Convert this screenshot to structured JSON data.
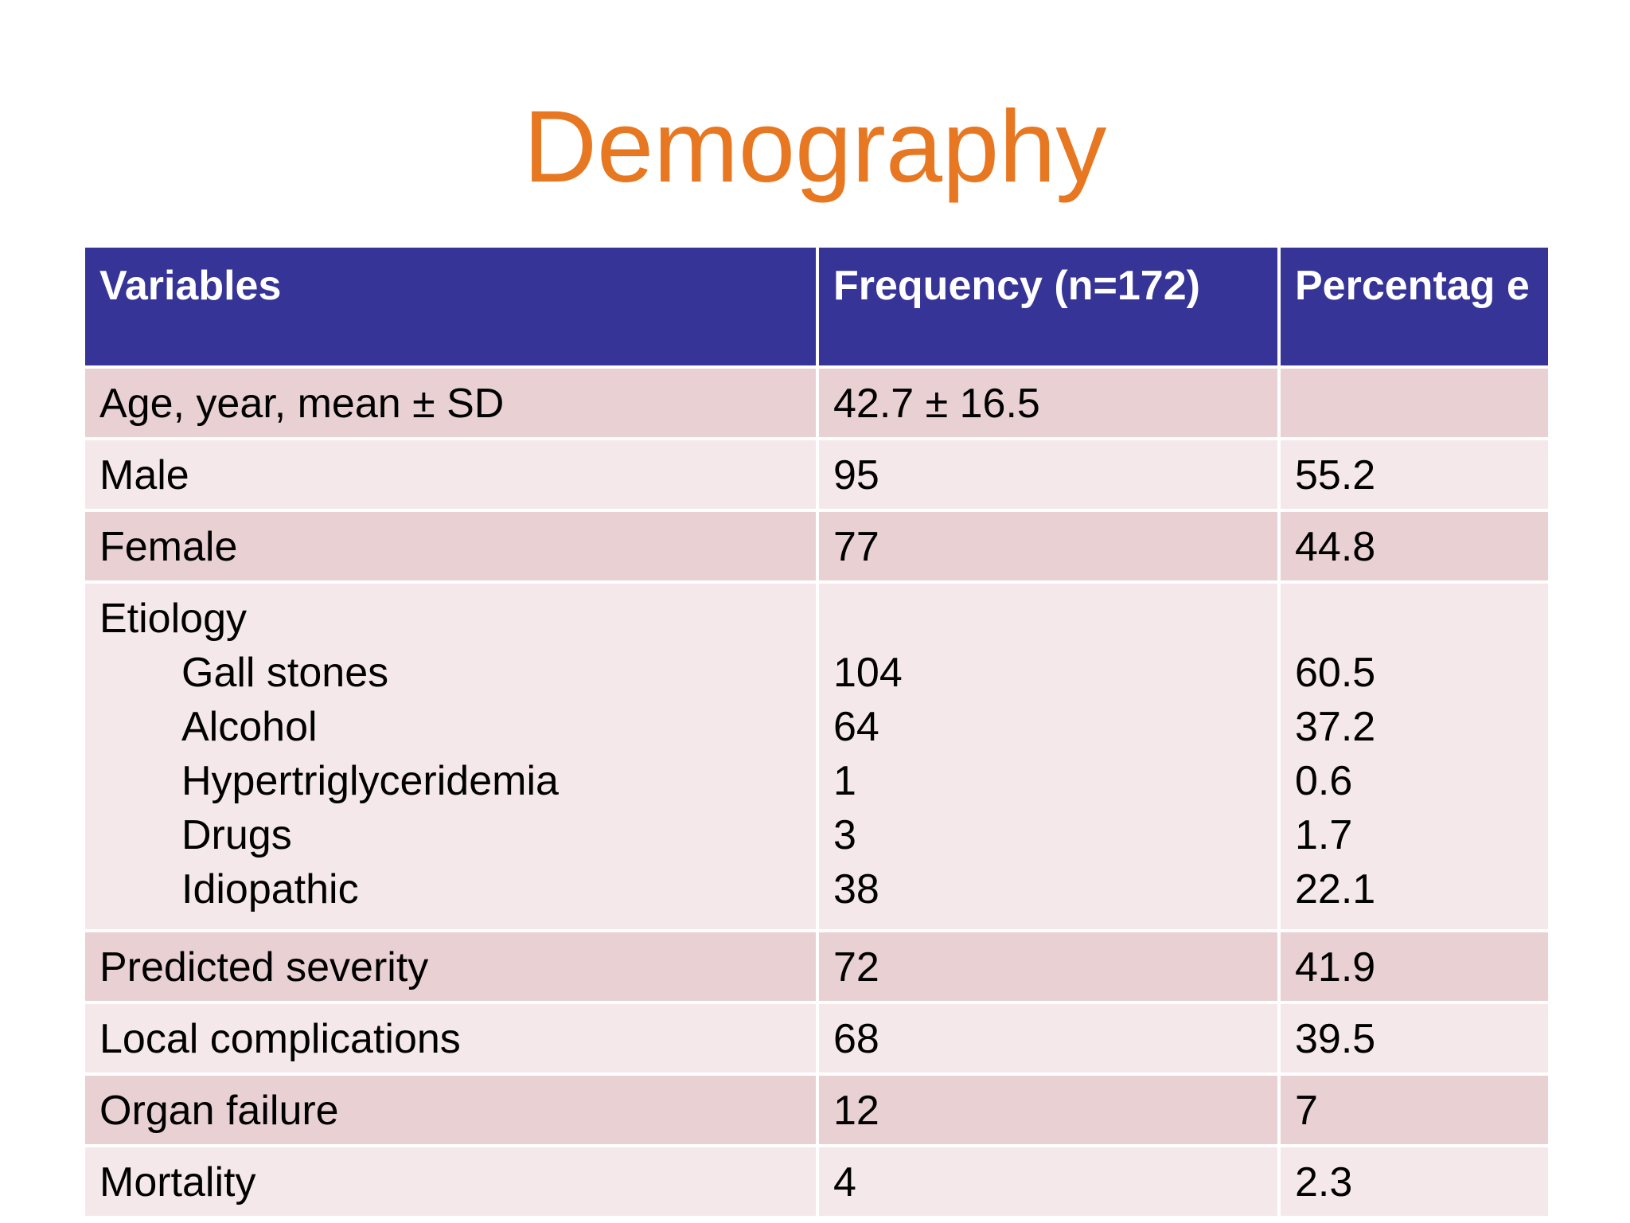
{
  "slide": {
    "title": "Demography"
  },
  "table": {
    "headers": {
      "variables": "Variables",
      "frequency": "Frequency  (n=172)",
      "percentage": "Percentag e"
    },
    "rows": {
      "age": {
        "label": "Age, year, mean ± SD",
        "frequency": "42.7 ± 16.5",
        "percentage": ""
      },
      "male": {
        "label": "Male",
        "frequency": "95",
        "percentage": "55.2"
      },
      "female": {
        "label": "Female",
        "frequency": "77",
        "percentage": "44.8"
      },
      "etiology": {
        "label": "Etiology",
        "items": {
          "gall_stones": {
            "label": "Gall stones",
            "frequency": "104",
            "percentage": "60.5"
          },
          "alcohol": {
            "label": "Alcohol",
            "frequency": "64",
            "percentage": "37.2"
          },
          "hypertriglyceridemia": {
            "label": "Hypertriglyceridemia",
            "frequency": "1",
            "percentage": "0.6"
          },
          "drugs": {
            "label": "Drugs",
            "frequency": "3",
            "percentage": "1.7"
          },
          "idiopathic": {
            "label": "Idiopathic",
            "frequency": "38",
            "percentage": "22.1"
          }
        }
      },
      "predicted_severity": {
        "label": "Predicted severity",
        "frequency": "72",
        "percentage": "41.9"
      },
      "local_complications": {
        "label": "Local complications",
        "frequency": "68",
        "percentage": "39.5"
      },
      "organ_failure": {
        "label": "Organ failure",
        "frequency": "12",
        "percentage": "7"
      },
      "mortality": {
        "label": "Mortality",
        "frequency": "4",
        "percentage": "2.3"
      }
    }
  },
  "colors": {
    "title": "#E87722",
    "header_bg": "#363497",
    "row_dark": "#E8D0D3",
    "row_light": "#F4E8EA"
  }
}
